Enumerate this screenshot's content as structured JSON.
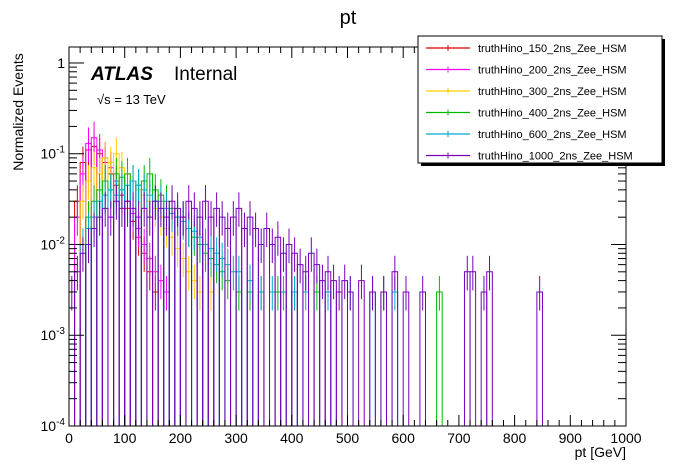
{
  "chart_data": {
    "type": "histogram",
    "title": "pt",
    "xlabel": "pt [GeV]",
    "ylabel": "Normalized Events",
    "xlim": [
      0,
      1000
    ],
    "ylim": [
      0.0001,
      1.5
    ],
    "yscale": "log",
    "x_ticks": [
      "0",
      "100",
      "200",
      "300",
      "400",
      "500",
      "600",
      "700",
      "800",
      "900",
      "1000"
    ],
    "y_ticks": [
      "10^-4",
      "10^-3",
      "10^-2",
      "10^-1",
      "1"
    ],
    "bin_width": 10,
    "annotation": {
      "experiment": "ATLAS",
      "status": "Internal",
      "energy": "√s = 13 TeV"
    },
    "legend_position": "top-right",
    "series": [
      {
        "name": "truthHino_150_2ns_Zee_HSM",
        "color": "#dd0000",
        "bins": [
          [
            10,
            0.03
          ],
          [
            20,
            0.08
          ],
          [
            30,
            0.11
          ],
          [
            40,
            0.12
          ],
          [
            50,
            0.1
          ],
          [
            60,
            0.08
          ],
          [
            70,
            0.06
          ],
          [
            80,
            0.045
          ],
          [
            90,
            0.035
          ],
          [
            100,
            0.025
          ],
          [
            110,
            0.018
          ],
          [
            120,
            0.012
          ],
          [
            130,
            0.008
          ],
          [
            140,
            0.005
          ],
          [
            150,
            0.003
          ]
        ]
      },
      {
        "name": "truthHino_200_2ns_Zee_HSM",
        "color": "#ff00ff",
        "bins": [
          [
            10,
            0.02
          ],
          [
            20,
            0.06
          ],
          [
            30,
            0.13
          ],
          [
            40,
            0.15
          ],
          [
            50,
            0.11
          ],
          [
            60,
            0.09
          ],
          [
            70,
            0.07
          ],
          [
            80,
            0.05
          ],
          [
            90,
            0.04
          ],
          [
            100,
            0.03
          ],
          [
            110,
            0.022
          ],
          [
            120,
            0.015
          ],
          [
            130,
            0.01
          ],
          [
            140,
            0.007
          ],
          [
            150,
            0.005
          ],
          [
            160,
            0.004
          ],
          [
            170,
            0.003
          ]
        ]
      },
      {
        "name": "truthHino_300_2ns_Zee_HSM",
        "color": "#ffcc00",
        "bins": [
          [
            20,
            0.03
          ],
          [
            30,
            0.05
          ],
          [
            40,
            0.07
          ],
          [
            50,
            0.06
          ],
          [
            60,
            0.09
          ],
          [
            70,
            0.08
          ],
          [
            80,
            0.1
          ],
          [
            90,
            0.07
          ],
          [
            100,
            0.06
          ],
          [
            110,
            0.05
          ],
          [
            120,
            0.04
          ],
          [
            130,
            0.035
          ],
          [
            140,
            0.03
          ],
          [
            150,
            0.025
          ],
          [
            160,
            0.02
          ],
          [
            170,
            0.015
          ],
          [
            180,
            0.012
          ],
          [
            190,
            0.009
          ],
          [
            200,
            0.007
          ],
          [
            210,
            0.005
          ],
          [
            220,
            0.004
          ],
          [
            230,
            0.003
          ],
          [
            250,
            0.003
          ]
        ]
      },
      {
        "name": "truthHino_400_2ns_Zee_HSM",
        "color": "#00bb00",
        "bins": [
          [
            30,
            0.02
          ],
          [
            40,
            0.03
          ],
          [
            50,
            0.04
          ],
          [
            60,
            0.05
          ],
          [
            70,
            0.04
          ],
          [
            80,
            0.06
          ],
          [
            90,
            0.055
          ],
          [
            100,
            0.06
          ],
          [
            110,
            0.05
          ],
          [
            120,
            0.045
          ],
          [
            130,
            0.05
          ],
          [
            140,
            0.06
          ],
          [
            150,
            0.04
          ],
          [
            160,
            0.035
          ],
          [
            170,
            0.03
          ],
          [
            180,
            0.025
          ],
          [
            190,
            0.02
          ],
          [
            200,
            0.02
          ],
          [
            210,
            0.015
          ],
          [
            220,
            0.012
          ],
          [
            230,
            0.01
          ],
          [
            240,
            0.008
          ],
          [
            250,
            0.007
          ],
          [
            260,
            0.006
          ],
          [
            270,
            0.005
          ],
          [
            280,
            0.004
          ],
          [
            300,
            0.003
          ],
          [
            320,
            0.003
          ],
          [
            340,
            0.003
          ],
          [
            370,
            0.003
          ],
          [
            400,
            0.003
          ],
          [
            440,
            0.003
          ],
          [
            560,
            0.003
          ],
          [
            660,
            0.003
          ]
        ]
      },
      {
        "name": "truthHino_600_2ns_Zee_HSM",
        "color": "#00aacc",
        "bins": [
          [
            20,
            0.01
          ],
          [
            30,
            0.015
          ],
          [
            40,
            0.02
          ],
          [
            50,
            0.03
          ],
          [
            60,
            0.035
          ],
          [
            70,
            0.04
          ],
          [
            80,
            0.035
          ],
          [
            90,
            0.04
          ],
          [
            100,
            0.045
          ],
          [
            110,
            0.05
          ],
          [
            120,
            0.045
          ],
          [
            130,
            0.04
          ],
          [
            140,
            0.035
          ],
          [
            150,
            0.03
          ],
          [
            160,
            0.03
          ],
          [
            170,
            0.025
          ],
          [
            180,
            0.022
          ],
          [
            190,
            0.02
          ],
          [
            200,
            0.018
          ],
          [
            210,
            0.015
          ],
          [
            220,
            0.014
          ],
          [
            230,
            0.012
          ],
          [
            240,
            0.01
          ],
          [
            250,
            0.009
          ],
          [
            260,
            0.008
          ],
          [
            270,
            0.007
          ],
          [
            280,
            0.006
          ],
          [
            290,
            0.005
          ],
          [
            300,
            0.005
          ],
          [
            320,
            0.004
          ],
          [
            340,
            0.003
          ],
          [
            360,
            0.003
          ],
          [
            380,
            0.003
          ],
          [
            400,
            0.003
          ],
          [
            420,
            0.003
          ],
          [
            460,
            0.003
          ],
          [
            500,
            0.003
          ],
          [
            540,
            0.003
          ],
          [
            580,
            0.003
          ]
        ]
      },
      {
        "name": "truthHino_1000_2ns_Zee_HSM",
        "color": "#7700bb",
        "bins": [
          [
            0,
            0.003
          ],
          [
            10,
            0.005
          ],
          [
            20,
            0.008
          ],
          [
            30,
            0.01
          ],
          [
            40,
            0.015
          ],
          [
            50,
            0.02
          ],
          [
            60,
            0.025
          ],
          [
            70,
            0.02
          ],
          [
            80,
            0.03
          ],
          [
            90,
            0.025
          ],
          [
            100,
            0.03
          ],
          [
            110,
            0.025
          ],
          [
            120,
            0.02
          ],
          [
            130,
            0.025
          ],
          [
            140,
            0.02
          ],
          [
            150,
            0.03
          ],
          [
            160,
            0.025
          ],
          [
            170,
            0.02
          ],
          [
            180,
            0.03
          ],
          [
            190,
            0.025
          ],
          [
            200,
            0.02
          ],
          [
            210,
            0.03
          ],
          [
            220,
            0.025
          ],
          [
            230,
            0.02
          ],
          [
            240,
            0.03
          ],
          [
            250,
            0.02
          ],
          [
            260,
            0.025
          ],
          [
            270,
            0.02
          ],
          [
            280,
            0.015
          ],
          [
            290,
            0.02
          ],
          [
            300,
            0.025
          ],
          [
            310,
            0.015
          ],
          [
            320,
            0.02
          ],
          [
            330,
            0.015
          ],
          [
            340,
            0.01
          ],
          [
            350,
            0.015
          ],
          [
            360,
            0.01
          ],
          [
            370,
            0.012
          ],
          [
            380,
            0.008
          ],
          [
            390,
            0.01
          ],
          [
            400,
            0.008
          ],
          [
            410,
            0.006
          ],
          [
            420,
            0.005
          ],
          [
            430,
            0.008
          ],
          [
            440,
            0.006
          ],
          [
            450,
            0.004
          ],
          [
            460,
            0.005
          ],
          [
            470,
            0.004
          ],
          [
            480,
            0.003
          ],
          [
            490,
            0.004
          ],
          [
            500,
            0.003
          ],
          [
            520,
            0.004
          ],
          [
            540,
            0.003
          ],
          [
            560,
            0.003
          ],
          [
            580,
            0.005
          ],
          [
            600,
            0.003
          ],
          [
            630,
            0.003
          ],
          [
            710,
            0.005
          ],
          [
            720,
            0.005
          ],
          [
            740,
            0.003
          ],
          [
            750,
            0.005
          ],
          [
            840,
            0.003
          ]
        ]
      }
    ]
  }
}
